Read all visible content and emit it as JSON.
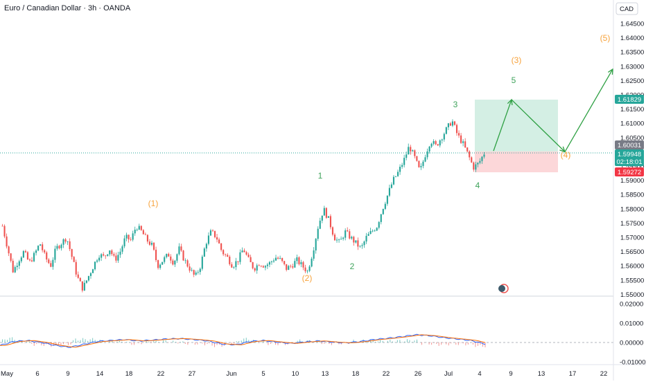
{
  "header": {
    "title": "Euro / Canadian Dollar · 3h · OANDA",
    "currency": "CAD"
  },
  "colors": {
    "up": "#26a69a",
    "down": "#ef5350",
    "wave_orange": "#f7a23a",
    "wave_green": "#3fa35b",
    "arrow": "#2ea043",
    "macd": "#2962ff",
    "signal": "#ff6d00",
    "tp_zone": "#d4efe4",
    "sl_zone": "#fcd7d9"
  },
  "price_axis": {
    "ticks": [
      "1.64500",
      "1.64000",
      "1.63500",
      "1.63000",
      "1.62500",
      "1.62000",
      "1.61500",
      "1.61000",
      "1.60500",
      "1.60000",
      "1.59500",
      "1.59000",
      "1.58500",
      "1.58000",
      "1.57500",
      "1.57000",
      "1.56500",
      "1.56000",
      "1.55500",
      "1.55000"
    ]
  },
  "price_badges": {
    "target": "1.61829",
    "entry": "1.60031",
    "current": "1.59948",
    "countdown": "02:18:01",
    "stop": "1.59272"
  },
  "osc_axis": {
    "ticks": [
      "0.02000",
      "0.01000",
      "0.00000",
      "-0.01000"
    ]
  },
  "date_axis": {
    "labels": [
      "May",
      "6",
      "9",
      "14",
      "18",
      "22",
      "27",
      "Jun",
      "5",
      "10",
      "13",
      "18",
      "22",
      "26",
      "Jul",
      "4",
      "9",
      "13",
      "17",
      "22"
    ]
  },
  "wave_labels": {
    "primary": [
      "(1)",
      "(2)",
      "(3)",
      "(4)",
      "(5)"
    ],
    "minor": [
      "1",
      "2",
      "3",
      "4",
      "5"
    ]
  },
  "chart_data": {
    "type": "candlestick",
    "symbol": "Euro / Canadian Dollar",
    "timeframe": "3h",
    "source": "OANDA",
    "ylim": [
      1.5495,
      1.6475
    ],
    "key_levels": {
      "target": 1.61829,
      "entry": 1.60031,
      "current": 1.59948,
      "stop": 1.59272
    },
    "price_path": [
      [
        1.574,
        1.566,
        1.558,
        1.562,
        1.565,
        1.561,
        1.564,
        1.568,
        1.563,
        1.56,
        1.566,
        1.568,
        1.57,
        1.563,
        1.556,
        1.552,
        1.556,
        1.56,
        1.564,
        1.563,
        1.566,
        1.562,
        1.565,
        1.57,
        1.569,
        1.574,
        1.572,
        1.569,
        1.567,
        1.56,
        1.562,
        1.564,
        1.561,
        1.566,
        1.562,
        1.559,
        1.556,
        1.56,
        1.568,
        1.572,
        1.57,
        1.565,
        1.563,
        1.56,
        1.562,
        1.566,
        1.562,
        1.559,
        1.561,
        1.56,
        1.561,
        1.563,
        1.562,
        1.559,
        1.56,
        1.562,
        1.56,
        1.558,
        1.565,
        1.574,
        1.58,
        1.576,
        1.57,
        1.568,
        1.572,
        1.57,
        1.568,
        1.566,
        1.57,
        1.572,
        1.574,
        1.58,
        1.585,
        1.59,
        1.593,
        1.597,
        1.602,
        1.598,
        1.593,
        1.599,
        1.604,
        1.602,
        1.605,
        1.608,
        1.611,
        1.606,
        1.603,
        1.599,
        1.5945,
        1.596,
        1.5995
      ]
    ],
    "oscillator": {
      "name": "MACD",
      "ylim": [
        -0.012,
        0.025
      ],
      "macd_path": [
        -0.0015,
        0.0005,
        0.001,
        0.0,
        -0.0015,
        -0.0025,
        -0.001,
        0.0005,
        0.001,
        0.0015,
        0.0008,
        0.0012,
        0.0018,
        0.002,
        0.0015,
        0.0008,
        -0.0008,
        -0.0012,
        0.0005,
        0.001,
        0.0002,
        -0.0005,
        0.0003,
        0.0008,
        0.0002,
        -0.0002,
        0.0005,
        0.0015,
        0.0022,
        0.003,
        0.004,
        0.0035,
        0.0025,
        0.0018,
        0.001,
        -0.0008
      ]
    },
    "trade": {
      "entry": 1.60031,
      "target": 1.61829,
      "stop": 1.59272
    },
    "projection_path": [
      1.60031,
      1.61829,
      1.6,
      1.629
    ]
  }
}
